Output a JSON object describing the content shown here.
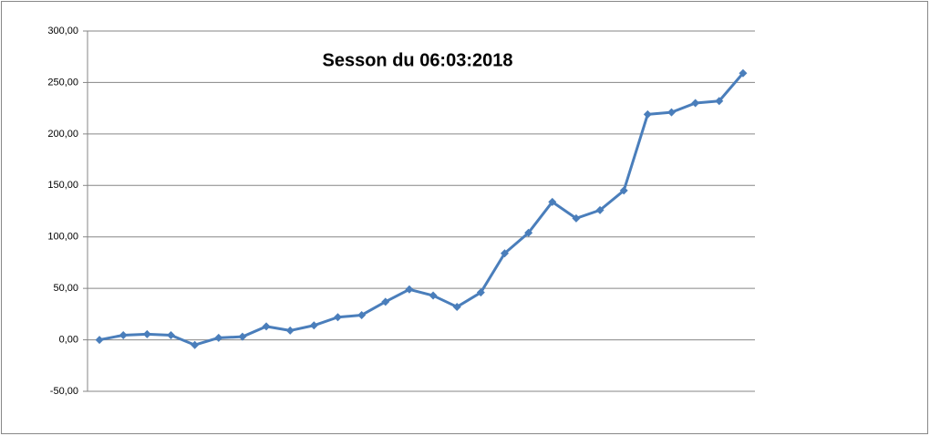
{
  "chart_data": {
    "type": "line",
    "title": "Sesson du  06:03:2018",
    "categories": [
      null,
      null,
      null,
      null,
      null,
      null,
      null,
      null,
      null,
      null,
      null,
      null,
      null,
      null,
      null,
      null,
      null,
      null,
      null,
      null,
      null,
      null,
      null,
      null,
      null,
      null,
      null,
      null
    ],
    "series": [
      {
        "color": "#4a7ebb",
        "values": [
          0,
          4.5,
          5.5,
          4.5,
          -5,
          2,
          3,
          13,
          9,
          14,
          22,
          24,
          37,
          49,
          43,
          32,
          46,
          84,
          104,
          134,
          118,
          126,
          145,
          219,
          221,
          230,
          232,
          259
        ]
      }
    ],
    "ylim": [
      -50,
      300
    ],
    "yticks": [
      {
        "value": -50,
        "label": "-50,00"
      },
      {
        "value": 0,
        "label": "0,00"
      },
      {
        "value": 50,
        "label": "50,00"
      },
      {
        "value": 100,
        "label": "100,00"
      },
      {
        "value": 150,
        "label": "150,00"
      },
      {
        "value": 200,
        "label": "200,00"
      },
      {
        "value": 250,
        "label": "250,00"
      },
      {
        "value": 300,
        "label": "300,00"
      }
    ],
    "grid": true
  }
}
